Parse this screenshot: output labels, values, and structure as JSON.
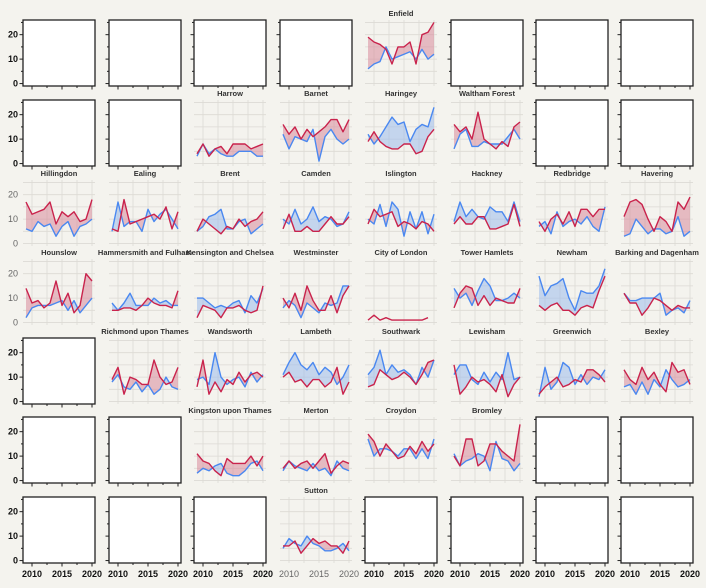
{
  "chart_data": {
    "type": "line",
    "title": "",
    "xlabel": "",
    "ylabel": "",
    "x": [
      2009,
      2010,
      2011,
      2012,
      2013,
      2014,
      2015,
      2016,
      2017,
      2018,
      2019,
      2020
    ],
    "xticks": [
      2010,
      2015,
      2020
    ],
    "yticks": [
      0,
      10,
      20
    ],
    "xlim": [
      2008.5,
      2020.5
    ],
    "ylim": [
      -1,
      26
    ],
    "grid": true,
    "colors": {
      "red": "#c9234c",
      "blue": "#4a88f0",
      "red_fill": "#d98a9c",
      "blue_fill": "#9dbcec"
    },
    "panels": [
      {
        "title": "Enfield",
        "red": [
          19,
          17,
          16,
          14,
          8,
          15,
          15,
          17,
          8,
          20,
          21,
          25
        ],
        "blue": [
          6,
          8,
          9,
          15,
          10,
          11,
          12,
          13,
          10,
          14,
          10,
          12
        ]
      },
      {
        "title": "Harrow",
        "red": [
          4,
          8,
          3,
          6,
          7,
          4,
          8,
          8,
          8,
          6,
          7,
          8
        ],
        "blue": [
          3,
          8,
          4,
          6,
          4,
          3,
          3,
          5,
          5,
          5,
          3,
          3
        ]
      },
      {
        "title": "Barnet",
        "red": [
          16,
          12,
          15,
          10,
          14,
          11,
          13,
          15,
          18,
          18,
          13,
          18
        ],
        "blue": [
          12,
          6,
          11,
          10,
          9,
          14,
          1,
          11,
          14,
          10,
          8,
          10
        ]
      },
      {
        "title": "Haringey",
        "red": [
          9,
          13,
          9,
          7,
          6,
          6,
          8,
          8,
          4,
          5,
          11,
          14
        ],
        "blue": [
          12,
          8,
          11,
          15,
          19,
          16,
          17,
          9,
          14,
          16,
          15,
          23
        ]
      },
      {
        "title": "Waltham Forest",
        "red": [
          16,
          13,
          15,
          10,
          21,
          10,
          8,
          6,
          9,
          7,
          15,
          17
        ],
        "blue": [
          6,
          12,
          14,
          7,
          7,
          9,
          8,
          8,
          8,
          11,
          14,
          10
        ]
      },
      {
        "title": "Hillingdon",
        "red": [
          17,
          12,
          13,
          14,
          17,
          8,
          13,
          11,
          13,
          9,
          10,
          18
        ],
        "blue": [
          6,
          5,
          9,
          7,
          8,
          3,
          7,
          9,
          3,
          7,
          8,
          10
        ]
      },
      {
        "title": "Ealing",
        "red": [
          6,
          5,
          18,
          8,
          9,
          10,
          11,
          12,
          10,
          15,
          6,
          13
        ],
        "blue": [
          5,
          17,
          7,
          9,
          9,
          5,
          14,
          9,
          12,
          14,
          10,
          6
        ]
      },
      {
        "title": "Brent",
        "red": [
          5,
          10,
          8,
          6,
          4,
          7,
          6,
          10,
          7,
          9,
          10,
          13
        ],
        "blue": [
          5,
          7,
          11,
          12,
          14,
          6,
          6,
          9,
          10,
          4,
          6,
          8
        ]
      },
      {
        "title": "Camden",
        "red": [
          6,
          12,
          5,
          5,
          7,
          5,
          5,
          8,
          11,
          8,
          8,
          11
        ],
        "blue": [
          10,
          8,
          14,
          8,
          10,
          15,
          9,
          11,
          10,
          7,
          8,
          13
        ]
      },
      {
        "title": "Islington",
        "red": [
          8,
          14,
          11,
          12,
          13,
          7,
          9,
          8,
          6,
          9,
          8,
          5
        ],
        "blue": [
          10,
          8,
          16,
          7,
          17,
          14,
          3,
          13,
          6,
          13,
          4,
          12
        ]
      },
      {
        "title": "Hackney",
        "red": [
          8,
          11,
          8,
          8,
          11,
          11,
          6,
          6,
          7,
          8,
          16,
          7
        ],
        "blue": [
          9,
          17,
          11,
          14,
          11,
          10,
          15,
          13,
          13,
          9,
          17,
          9
        ]
      },
      {
        "title": "Redbridge",
        "red": [
          9,
          5,
          10,
          12,
          8,
          13,
          7,
          14,
          14,
          11,
          14,
          14
        ],
        "blue": [
          7,
          9,
          4,
          13,
          7,
          9,
          10,
          8,
          11,
          7,
          5,
          15
        ]
      },
      {
        "title": "Havering",
        "red": [
          11,
          17,
          18,
          16,
          10,
          5,
          11,
          9,
          5,
          17,
          14,
          19
        ],
        "blue": [
          3,
          4,
          10,
          7,
          4,
          6,
          6,
          4,
          5,
          11,
          3,
          5
        ]
      },
      {
        "title": "Hounslow",
        "red": [
          14,
          8,
          9,
          6,
          8,
          17,
          7,
          12,
          4,
          7,
          20,
          17
        ],
        "blue": [
          2,
          6,
          7,
          7,
          7,
          8,
          9,
          5,
          9,
          4,
          7,
          10
        ]
      },
      {
        "title": "Hammersmith and Fulham",
        "red": [
          5,
          5,
          6,
          6,
          5,
          7,
          10,
          8,
          7,
          7,
          6,
          13
        ],
        "blue": [
          8,
          5,
          8,
          12,
          7,
          7,
          7,
          10,
          8,
          9,
          7,
          7
        ]
      },
      {
        "title": "Kensington and Chelsea",
        "red": [
          2,
          7,
          6,
          5,
          2,
          6,
          6,
          7,
          5,
          4,
          5,
          15
        ],
        "blue": [
          10,
          10,
          8,
          6,
          7,
          6,
          8,
          9,
          4,
          11,
          8,
          14
        ]
      },
      {
        "title": "Westminster",
        "red": [
          10,
          6,
          12,
          5,
          15,
          9,
          5,
          5,
          11,
          4,
          11,
          15
        ],
        "blue": [
          6,
          9,
          7,
          2,
          8,
          6,
          4,
          8,
          7,
          8,
          15,
          15
        ]
      },
      {
        "title": "City of London",
        "red": [
          1,
          3,
          1,
          2,
          1,
          1,
          1,
          1,
          1,
          1,
          2,
          null
        ],
        "blue": [
          null,
          null,
          null,
          null,
          null,
          null,
          null,
          null,
          null,
          null,
          null,
          null
        ]
      },
      {
        "title": "Tower Hamlets",
        "red": [
          6,
          12,
          15,
          14,
          7,
          11,
          7,
          10,
          9,
          8,
          8,
          14
        ],
        "blue": [
          14,
          10,
          12,
          7,
          13,
          18,
          15,
          9,
          9,
          10,
          12,
          10
        ]
      },
      {
        "title": "Newham",
        "red": [
          7,
          5,
          7,
          8,
          5,
          5,
          3,
          6,
          7,
          6,
          13,
          19
        ],
        "blue": [
          19,
          11,
          15,
          16,
          18,
          10,
          5,
          13,
          12,
          12,
          15,
          22
        ]
      },
      {
        "title": "Barking and Dagenham",
        "red": [
          12,
          8,
          8,
          3,
          6,
          10,
          9,
          7,
          5,
          7,
          6,
          6
        ],
        "blue": [
          12,
          9,
          9,
          10,
          10,
          10,
          12,
          3,
          5,
          6,
          4,
          9
        ]
      },
      {
        "title": "Richmond upon Thames",
        "red": [
          9,
          14,
          3,
          10,
          9,
          7,
          7,
          17,
          10,
          7,
          8,
          14
        ],
        "blue": [
          8,
          11,
          6,
          5,
          8,
          4,
          7,
          3,
          5,
          10,
          6,
          5
        ]
      },
      {
        "title": "Wandsworth",
        "red": [
          6,
          17,
          3,
          8,
          4,
          9,
          7,
          12,
          8,
          11,
          12,
          10
        ],
        "blue": [
          9,
          10,
          7,
          20,
          10,
          7,
          9,
          10,
          6,
          12,
          8,
          11
        ]
      },
      {
        "title": "Lambeth",
        "red": [
          10,
          12,
          8,
          9,
          6,
          9,
          9,
          6,
          8,
          14,
          3,
          8
        ],
        "blue": [
          11,
          16,
          20,
          15,
          13,
          16,
          11,
          14,
          12,
          7,
          10,
          15
        ]
      },
      {
        "title": "Southwark",
        "red": [
          6,
          7,
          13,
          11,
          9,
          10,
          12,
          10,
          7,
          11,
          16,
          17
        ],
        "blue": [
          11,
          14,
          21,
          11,
          15,
          12,
          13,
          11,
          7,
          14,
          10,
          17
        ]
      },
      {
        "title": "Lewisham",
        "red": [
          15,
          3,
          6,
          10,
          8,
          9,
          7,
          4,
          11,
          2,
          7,
          10
        ],
        "blue": [
          11,
          15,
          15,
          9,
          7,
          12,
          8,
          12,
          9,
          20,
          9,
          10
        ]
      },
      {
        "title": "Greenwich",
        "red": [
          3,
          6,
          8,
          10,
          6,
          7,
          9,
          8,
          13,
          13,
          11,
          8
        ],
        "blue": [
          2,
          14,
          5,
          8,
          16,
          14,
          7,
          11,
          7,
          10,
          9,
          13
        ]
      },
      {
        "title": "Bexley",
        "red": [
          13,
          9,
          7,
          14,
          9,
          12,
          7,
          4,
          16,
          12,
          13,
          7
        ],
        "blue": [
          6,
          7,
          3,
          8,
          3,
          9,
          6,
          13,
          9,
          6,
          7,
          9
        ]
      },
      {
        "title": "Kingston upon Thames",
        "red": [
          11,
          8,
          7,
          4,
          2,
          9,
          7,
          7,
          7,
          10,
          6,
          10
        ],
        "blue": [
          3,
          5,
          4,
          6,
          7,
          3,
          2,
          2,
          4,
          7,
          8,
          4
        ]
      },
      {
        "title": "Merton",
        "red": [
          5,
          8,
          5,
          7,
          8,
          5,
          8,
          11,
          3,
          6,
          8,
          7
        ],
        "blue": [
          4,
          8,
          6,
          5,
          4,
          7,
          4,
          5,
          2,
          8,
          5,
          4
        ]
      },
      {
        "title": "Croydon",
        "red": [
          19,
          16,
          10,
          15,
          12,
          9,
          10,
          14,
          11,
          16,
          12,
          15
        ],
        "blue": [
          17,
          10,
          13,
          13,
          12,
          10,
          13,
          13,
          9,
          13,
          9,
          17
        ]
      },
      {
        "title": "Bromley",
        "red": [
          10,
          6,
          17,
          17,
          6,
          8,
          15,
          15,
          12,
          10,
          8,
          23
        ],
        "blue": [
          11,
          6,
          8,
          9,
          11,
          10,
          4,
          16,
          9,
          8,
          4,
          7
        ]
      },
      {
        "title": "Sutton",
        "red": [
          6,
          6,
          8,
          3,
          6,
          9,
          7,
          8,
          6,
          6,
          3,
          8
        ],
        "blue": [
          5,
          9,
          7,
          6,
          10,
          7,
          6,
          4,
          4,
          5,
          7,
          4
        ]
      }
    ]
  }
}
